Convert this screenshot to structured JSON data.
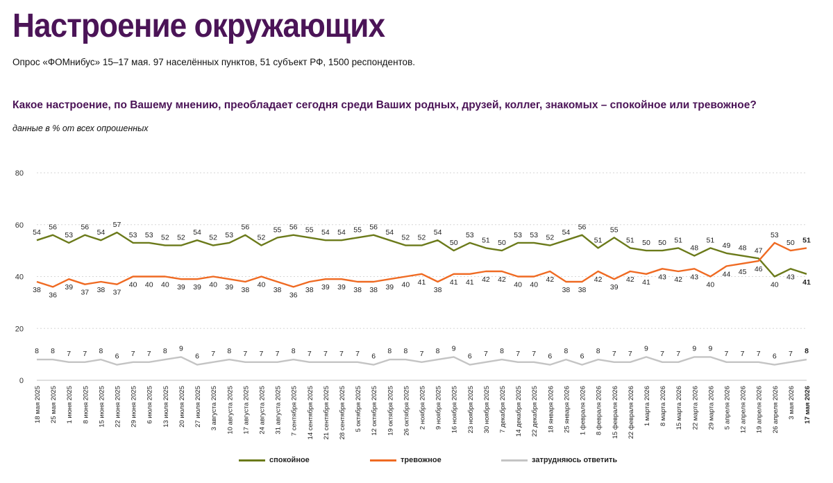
{
  "header": {
    "title": "Настроение окружающих",
    "subtitle": "Опрос «ФОМнибус» 15–17 мая. 97 населённых пунктов, 51 субъект РФ, 1500 респондентов.",
    "question": "Какое настроение, по Вашему мнению, преобладает сегодня среди Ваших родных, друзей, коллег, знакомых – спокойное или тревожное?",
    "note": "данные в % от всех опрошенных"
  },
  "colors": {
    "title": "#4b1457",
    "calm": "#6b7a1a",
    "anxious": "#ef6a22",
    "hard": "#c4c4c4"
  },
  "chart_data": {
    "type": "line",
    "ylim": [
      0,
      80
    ],
    "yticks": [
      0,
      20,
      40,
      60,
      80
    ],
    "grid": true,
    "legend_position": "bottom",
    "x": [
      "18 мая 2025",
      "25 мая 2025",
      "1 июня 2025",
      "8 июня 2025",
      "15 июня 2025",
      "22 июня 2025",
      "29 июня 2025",
      "6 июля 2025",
      "13 июля 2025",
      "20 июля 2025",
      "27 июля 2025",
      "3 августа 2025",
      "10 августа 2025",
      "17 августа 2025",
      "24 августа 2025",
      "31 августа 2025",
      "7 сентября 2025",
      "14 сентября 2025",
      "21 сентября 2025",
      "28 сентября 2025",
      "5 октября 2025",
      "12 октября 2025",
      "19 октября 2025",
      "26 октября 2025",
      "2 ноября 2025",
      "9 ноября 2025",
      "16 ноября 2025",
      "23 ноября 2025",
      "30 ноября 2025",
      "7 декабря 2025",
      "14 декабря 2025",
      "22 декабря 2025",
      "18 января 2026",
      "25 января 2026",
      "1 февраля 2026",
      "8 февраля 2026",
      "15 февраля 2026",
      "22 февраля 2026",
      "1 марта 2026",
      "8 марта 2026",
      "15 марта 2026",
      "22 марта 2026",
      "29 марта 2026",
      "5 апреля 2026",
      "12 апреля 2026",
      "19 апреля 2026",
      "26 апреля 2026",
      "3 мая 2026",
      "17 мая 2026"
    ],
    "series": [
      {
        "name": "спокойное",
        "values": [
          54,
          56,
          53,
          56,
          54,
          57,
          53,
          53,
          52,
          52,
          54,
          52,
          53,
          56,
          52,
          55,
          56,
          55,
          54,
          54,
          55,
          56,
          54,
          52,
          52,
          54,
          50,
          53,
          51,
          50,
          53,
          53,
          52,
          54,
          56,
          51,
          55,
          51,
          50,
          50,
          51,
          48,
          51,
          49,
          48,
          47,
          40,
          43,
          41
        ]
      },
      {
        "name": "тревожное",
        "values": [
          38,
          36,
          39,
          37,
          38,
          37,
          40,
          40,
          40,
          39,
          39,
          40,
          39,
          38,
          40,
          38,
          36,
          38,
          39,
          39,
          38,
          38,
          39,
          40,
          41,
          38,
          41,
          41,
          42,
          42,
          40,
          40,
          42,
          38,
          38,
          42,
          39,
          42,
          41,
          43,
          42,
          43,
          40,
          44,
          45,
          46,
          53,
          50,
          51
        ]
      },
      {
        "name": "затрудняюсь ответить",
        "values": [
          8,
          8,
          7,
          7,
          8,
          6,
          7,
          7,
          8,
          9,
          6,
          7,
          8,
          7,
          7,
          7,
          8,
          7,
          7,
          7,
          7,
          6,
          8,
          8,
          7,
          8,
          9,
          6,
          7,
          8,
          7,
          7,
          6,
          8,
          6,
          8,
          7,
          7,
          9,
          7,
          7,
          9,
          9,
          7,
          7,
          7,
          6,
          7,
          8
        ]
      }
    ]
  }
}
